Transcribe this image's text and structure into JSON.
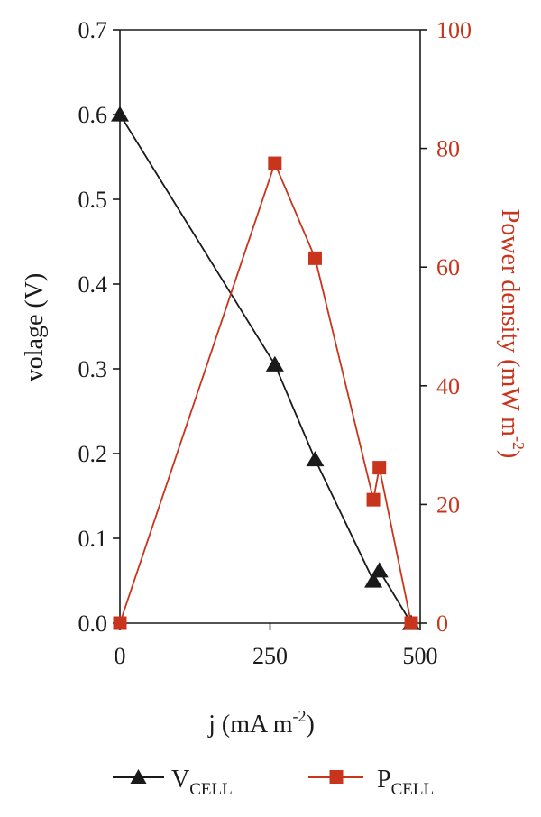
{
  "chart_data": {
    "type": "line",
    "xlabel": "j (mA m",
    "xlabel_sup": "-2",
    "xlabel_end": ")",
    "ylabel_left": "volage (V)",
    "ylabel_right": "Power density (mW m",
    "ylabel_right_sup": "-2",
    "ylabel_right_end": ")",
    "xlim": [
      0,
      500
    ],
    "ylim_left": [
      0,
      0.7
    ],
    "ylim_right": [
      0,
      100
    ],
    "x_ticks": [
      "0",
      "250",
      "500"
    ],
    "x_tick_values": [
      0,
      250,
      500
    ],
    "y_left_ticks": [
      "0.0",
      "0.1",
      "0.2",
      "0.3",
      "0.4",
      "0.5",
      "0.6",
      "0.7"
    ],
    "y_left_tick_values": [
      0,
      0.1,
      0.2,
      0.3,
      0.4,
      0.5,
      0.6,
      0.7
    ],
    "y_right_ticks": [
      "0",
      "20",
      "40",
      "60",
      "80",
      "100"
    ],
    "y_right_tick_values": [
      0,
      20,
      40,
      60,
      80,
      100
    ],
    "grid": false,
    "legend_position": "bottom",
    "series": [
      {
        "name": "V",
        "name_sub": "CELL",
        "axis": "left",
        "marker": "triangle",
        "color": "#1a1a1a",
        "x": [
          0,
          258,
          325,
          422,
          432,
          485
        ],
        "y": [
          0.6,
          0.305,
          0.193,
          0.05,
          0.062,
          0.0
        ]
      },
      {
        "name": "P",
        "name_sub": "CELL",
        "axis": "right",
        "marker": "square",
        "color": "#c8341c",
        "x": [
          0,
          258,
          325,
          422,
          432,
          485
        ],
        "y": [
          0,
          77.5,
          61.5,
          20.8,
          26.2,
          0
        ]
      }
    ]
  }
}
